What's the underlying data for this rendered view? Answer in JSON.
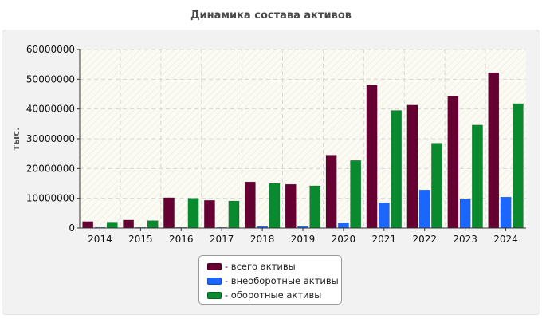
{
  "chart_data": {
    "type": "bar",
    "title": "Динамика состава активов",
    "ylabel": "тыс.",
    "xlabel": "",
    "categories": [
      "2014",
      "2015",
      "2016",
      "2017",
      "2018",
      "2019",
      "2020",
      "2021",
      "2022",
      "2023",
      "2024"
    ],
    "ylim": [
      0,
      60000000
    ],
    "yticks": [
      "0",
      "10000000",
      "20000000",
      "30000000",
      "40000000",
      "50000000",
      "60000000"
    ],
    "grid": true,
    "legend_position": "bottom",
    "series": [
      {
        "name": "- всего активы",
        "color": "#660033",
        "values": [
          2200000,
          2700000,
          10200000,
          9300000,
          15500000,
          14700000,
          24500000,
          48000000,
          41300000,
          44300000,
          52200000
        ]
      },
      {
        "name": "- внеоборотные активы",
        "color": "#1a66ff",
        "values": [
          200000,
          200000,
          200000,
          200000,
          500000,
          500000,
          1800000,
          8500000,
          12800000,
          9700000,
          10400000
        ]
      },
      {
        "name": "- оборотные активы",
        "color": "#0a8a2e",
        "values": [
          2000000,
          2500000,
          10000000,
          9100000,
          15000000,
          14200000,
          22700000,
          39500000,
          28500000,
          34600000,
          41800000
        ]
      }
    ]
  }
}
